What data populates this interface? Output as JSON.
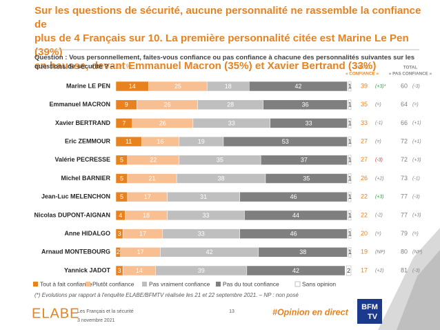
{
  "chart_data": {
    "type": "stacked-bar",
    "title": [
      "Sur les questions de sécurité, aucune personnalité ne rassemble la confiance de",
      "plus de 4 Français sur 10. La première personnalité citée est Marine Le Pen (39%)",
      "en hausse, devant Emmanuel Macron (35%) et Xavier Bertrand (33%)"
    ],
    "question": "Question : Vous personnellement, faites-vous confiance ou pas confiance à chacune des personnalités suivantes sur les questions de sécurité ? –",
    "unit": "En %",
    "categories": [
      "Marine LE PEN",
      "Emmanuel MACRON",
      "Xavier BERTRAND",
      "Eric ZEMMOUR",
      "Valérie PECRESSE",
      "Michel BARNIER",
      "Jean-Luc MELENCHON",
      "Nicolas DUPONT-AIGNAN",
      "Anne HIDALGO",
      "Arnaud MONTEBOURG",
      "Yannick JADOT"
    ],
    "series": [
      {
        "name": "Tout à fait confiance",
        "color": "#e8821e",
        "values": [
          14,
          9,
          7,
          11,
          5,
          5,
          5,
          4,
          3,
          2,
          3
        ]
      },
      {
        "name": "Plutôt confiance",
        "color": "#f7bf92",
        "values": [
          25,
          26,
          26,
          16,
          22,
          21,
          17,
          18,
          17,
          17,
          14
        ]
      },
      {
        "name": "Pas vraiment confiance",
        "color": "#bfbfbf",
        "values": [
          18,
          28,
          33,
          19,
          35,
          38,
          31,
          33,
          33,
          42,
          39
        ]
      },
      {
        "name": "Pas du tout confiance",
        "color": "#7f7f7f",
        "values": [
          42,
          36,
          33,
          53,
          37,
          35,
          46,
          44,
          46,
          38,
          42
        ]
      },
      {
        "name": "Sans opinion",
        "color": "#ffffff",
        "values": [
          1,
          1,
          1,
          1,
          1,
          1,
          1,
          1,
          1,
          1,
          2
        ]
      }
    ],
    "totals": [
      {
        "header": [
          "TOTAL",
          "« CONFIANCE »"
        ],
        "color": "#e8821e",
        "values": [
          39,
          35,
          33,
          27,
          27,
          26,
          22,
          22,
          20,
          19,
          17
        ],
        "changes": [
          "(+3)*",
          "(=)",
          "(-1)",
          "(=)",
          "(-3)",
          "(+2)",
          "(+3)",
          "(-2)",
          "(=)",
          "(NP)",
          "(+2)"
        ],
        "change_colors": [
          "#2e9e3e",
          "#7f7f7f",
          "#7f7f7f",
          "#7f7f7f",
          "#d9262c",
          "#7f7f7f",
          "#2e9e3e",
          "#7f7f7f",
          "#7f7f7f",
          "#7f7f7f",
          "#7f7f7f"
        ]
      },
      {
        "header": [
          "TOTAL",
          "« PAS CONFIANCE »"
        ],
        "color": "#7f7f7f",
        "values": [
          60,
          64,
          66,
          72,
          72,
          73,
          77,
          77,
          79,
          80,
          81
        ],
        "changes": [
          "(-3)",
          "(=)",
          "(+1)",
          "(+1)",
          "(+3)",
          "(-1)",
          "(-3)",
          "(+3)",
          "(=)",
          "(NP)",
          "(-3)"
        ],
        "change_colors": [
          "#7f7f7f",
          "#7f7f7f",
          "#7f7f7f",
          "#7f7f7f",
          "#7f7f7f",
          "#7f7f7f",
          "#7f7f7f",
          "#7f7f7f",
          "#7f7f7f",
          "#7f7f7f",
          "#7f7f7f"
        ]
      }
    ],
    "footnote": "(*) Evolutions par rapport à l'enquête ELABE/BFMTV réalisée les 21 et 22 septembre 2021. – NP : non posé"
  },
  "footer": {
    "logo": "ELABE",
    "study": "Les Français et la sécurité",
    "date": "3 novembre 2021",
    "page": "13",
    "hashtag": "#Opinion en direct",
    "partner": [
      "BFM",
      "TV"
    ]
  }
}
